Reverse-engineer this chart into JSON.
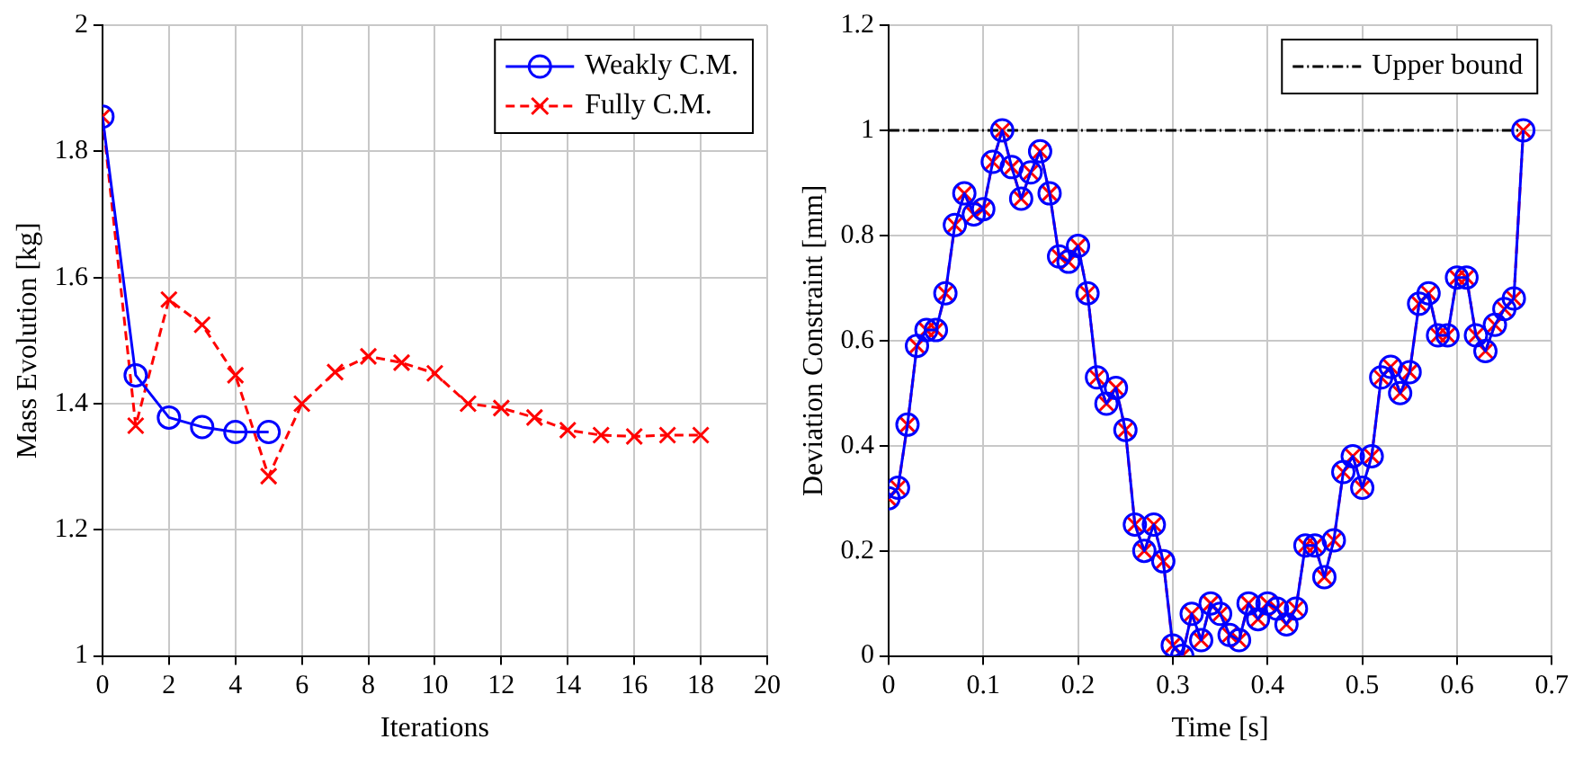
{
  "chart_data": [
    {
      "type": "line",
      "xlabel": "Iterations",
      "ylabel": "Mass Evolution [kg]",
      "xlim": [
        0,
        20
      ],
      "ylim": [
        1,
        2
      ],
      "xticks": [
        0,
        2,
        4,
        6,
        8,
        10,
        12,
        14,
        16,
        18,
        20
      ],
      "yticks": [
        1,
        1.2,
        1.4,
        1.6,
        1.8,
        2
      ],
      "grid": true,
      "legend": "top right",
      "series": [
        {
          "name": "Weakly C.M.",
          "color": "#0000ff",
          "marker": "circle",
          "line_style": "solid",
          "x": [
            0,
            1,
            2,
            3,
            4,
            5
          ],
          "values": [
            1.855,
            1.445,
            1.378,
            1.363,
            1.355,
            1.355
          ]
        },
        {
          "name": "Fully C.M.",
          "color": "#ff0000",
          "marker": "cross",
          "line_style": "dashed",
          "x": [
            0,
            1,
            2,
            3,
            4,
            5,
            6,
            7,
            8,
            9,
            10,
            11,
            12,
            13,
            14,
            15,
            16,
            17,
            18
          ],
          "values": [
            1.855,
            1.365,
            1.565,
            1.525,
            1.445,
            1.285,
            1.4,
            1.45,
            1.475,
            1.465,
            1.448,
            1.4,
            1.393,
            1.378,
            1.358,
            1.35,
            1.348,
            1.35,
            1.35
          ]
        }
      ]
    },
    {
      "type": "line",
      "xlabel": "Time [s]",
      "ylabel": "Deviation Constraint [mm]",
      "xlim": [
        0,
        0.7
      ],
      "ylim": [
        0,
        1.2
      ],
      "xticks": [
        0,
        0.1,
        0.2,
        0.3,
        0.4,
        0.5,
        0.6,
        0.7
      ],
      "yticks": [
        0,
        0.2,
        0.4,
        0.6,
        0.8,
        1,
        1.2
      ],
      "grid": true,
      "legend": "top right",
      "x": [
        0,
        0.01,
        0.02,
        0.03,
        0.04,
        0.05,
        0.06,
        0.07,
        0.08,
        0.09,
        0.1,
        0.11,
        0.12,
        0.13,
        0.14,
        0.15,
        0.16,
        0.17,
        0.18,
        0.19,
        0.2,
        0.21,
        0.22,
        0.23,
        0.24,
        0.25,
        0.26,
        0.27,
        0.28,
        0.29,
        0.3,
        0.31,
        0.32,
        0.33,
        0.34,
        0.35,
        0.36,
        0.37,
        0.38,
        0.39,
        0.4,
        0.41,
        0.42,
        0.43,
        0.44,
        0.45,
        0.46,
        0.47,
        0.48,
        0.49,
        0.5,
        0.51,
        0.52,
        0.53,
        0.54,
        0.55,
        0.56,
        0.57,
        0.58,
        0.59,
        0.6,
        0.61,
        0.62,
        0.63,
        0.64,
        0.65,
        0.66,
        0.67
      ],
      "series": [
        {
          "color": "#0000ff",
          "marker": "circle",
          "line_style": "solid",
          "values": [
            0.3,
            0.32,
            0.44,
            0.59,
            0.62,
            0.62,
            0.69,
            0.82,
            0.88,
            0.84,
            0.85,
            0.94,
            1.0,
            0.93,
            0.87,
            0.92,
            0.96,
            0.88,
            0.76,
            0.75,
            0.78,
            0.69,
            0.53,
            0.48,
            0.51,
            0.43,
            0.25,
            0.2,
            0.25,
            0.18,
            0.02,
            0.0,
            0.08,
            0.03,
            0.1,
            0.08,
            0.04,
            0.03,
            0.1,
            0.07,
            0.1,
            0.09,
            0.06,
            0.09,
            0.21,
            0.21,
            0.15,
            0.22,
            0.35,
            0.38,
            0.32,
            0.38,
            0.53,
            0.55,
            0.5,
            0.54,
            0.67,
            0.69,
            0.61,
            0.61,
            0.72,
            0.72,
            0.61,
            0.58,
            0.63,
            0.66,
            0.68,
            1.0
          ]
        },
        {
          "color": "#ff0000",
          "marker": "cross",
          "line_style": "dashed",
          "values": [
            0.3,
            0.32,
            0.44,
            0.59,
            0.62,
            0.62,
            0.69,
            0.82,
            0.88,
            0.84,
            0.85,
            0.94,
            1.0,
            0.93,
            0.87,
            0.92,
            0.96,
            0.88,
            0.76,
            0.75,
            0.78,
            0.69,
            0.53,
            0.48,
            0.51,
            0.43,
            0.25,
            0.2,
            0.25,
            0.18,
            0.02,
            0.0,
            0.08,
            0.03,
            0.1,
            0.08,
            0.04,
            0.03,
            0.1,
            0.07,
            0.1,
            0.09,
            0.06,
            0.09,
            0.21,
            0.21,
            0.15,
            0.22,
            0.35,
            0.38,
            0.32,
            0.38,
            0.53,
            0.55,
            0.5,
            0.54,
            0.67,
            0.69,
            0.61,
            0.61,
            0.72,
            0.72,
            0.61,
            0.58,
            0.63,
            0.66,
            0.68,
            1.0
          ]
        },
        {
          "name": "Upper bound",
          "color": "#000000",
          "marker": "none",
          "line_style": "dashdot",
          "x": [
            0,
            0.67
          ],
          "values": [
            1,
            1
          ]
        }
      ]
    }
  ]
}
